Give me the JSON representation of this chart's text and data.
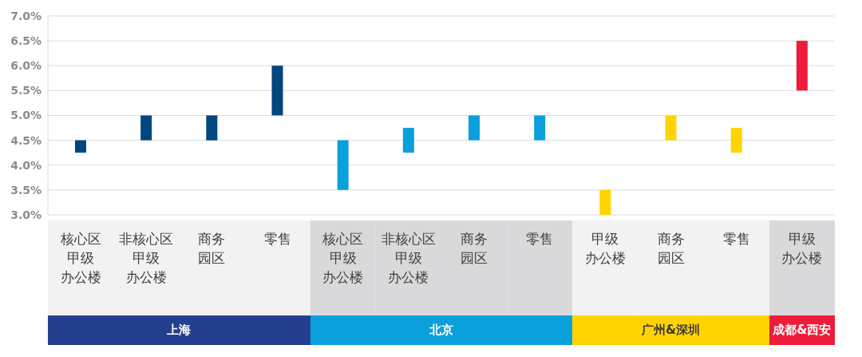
{
  "chart_data": {
    "type": "bar",
    "categories": [
      "核心区甲级办公楼",
      "非核心区甲级办公楼",
      "商务园区",
      "零售",
      "核心区甲级办公楼",
      "非核心区甲级办公楼",
      "商务园区",
      "零售",
      "甲级办公楼",
      "商务园区",
      "零售",
      "甲级办公楼"
    ],
    "base": [
      4.25,
      4.5,
      4.5,
      5.0,
      3.5,
      4.25,
      4.5,
      4.5,
      3.0,
      4.5,
      4.25,
      5.5
    ],
    "values": [
      0.25,
      0.5,
      0.5,
      1.0,
      1.0,
      0.5,
      0.5,
      0.5,
      0.5,
      0.5,
      0.5,
      1.0
    ],
    "colors": [
      "#00467f",
      "#00467f",
      "#00467f",
      "#00467f",
      "#0aa0dc",
      "#0aa0dc",
      "#0aa0dc",
      "#0aa0dc",
      "#ffd400",
      "#ffd400",
      "#ffd400",
      "#ed1c3a"
    ],
    "ylim": [
      3.0,
      7.0
    ],
    "yticks": [
      {
        "value": 3.0,
        "label": "3.0%"
      },
      {
        "value": 3.5,
        "label": "3.5%"
      },
      {
        "value": 4.0,
        "label": "4.0%"
      },
      {
        "value": 4.5,
        "label": "4.5%"
      },
      {
        "value": 5.0,
        "label": "5.0%"
      },
      {
        "value": 5.5,
        "label": "5.5%"
      },
      {
        "value": 6.0,
        "label": "6.0%"
      },
      {
        "value": 6.5,
        "label": "6.5%"
      },
      {
        "value": 7.0,
        "label": "7.0%"
      }
    ],
    "grid": "y",
    "annotations": [
      "上海",
      "北京",
      "广州&深圳",
      "成都&西安"
    ]
  }
}
